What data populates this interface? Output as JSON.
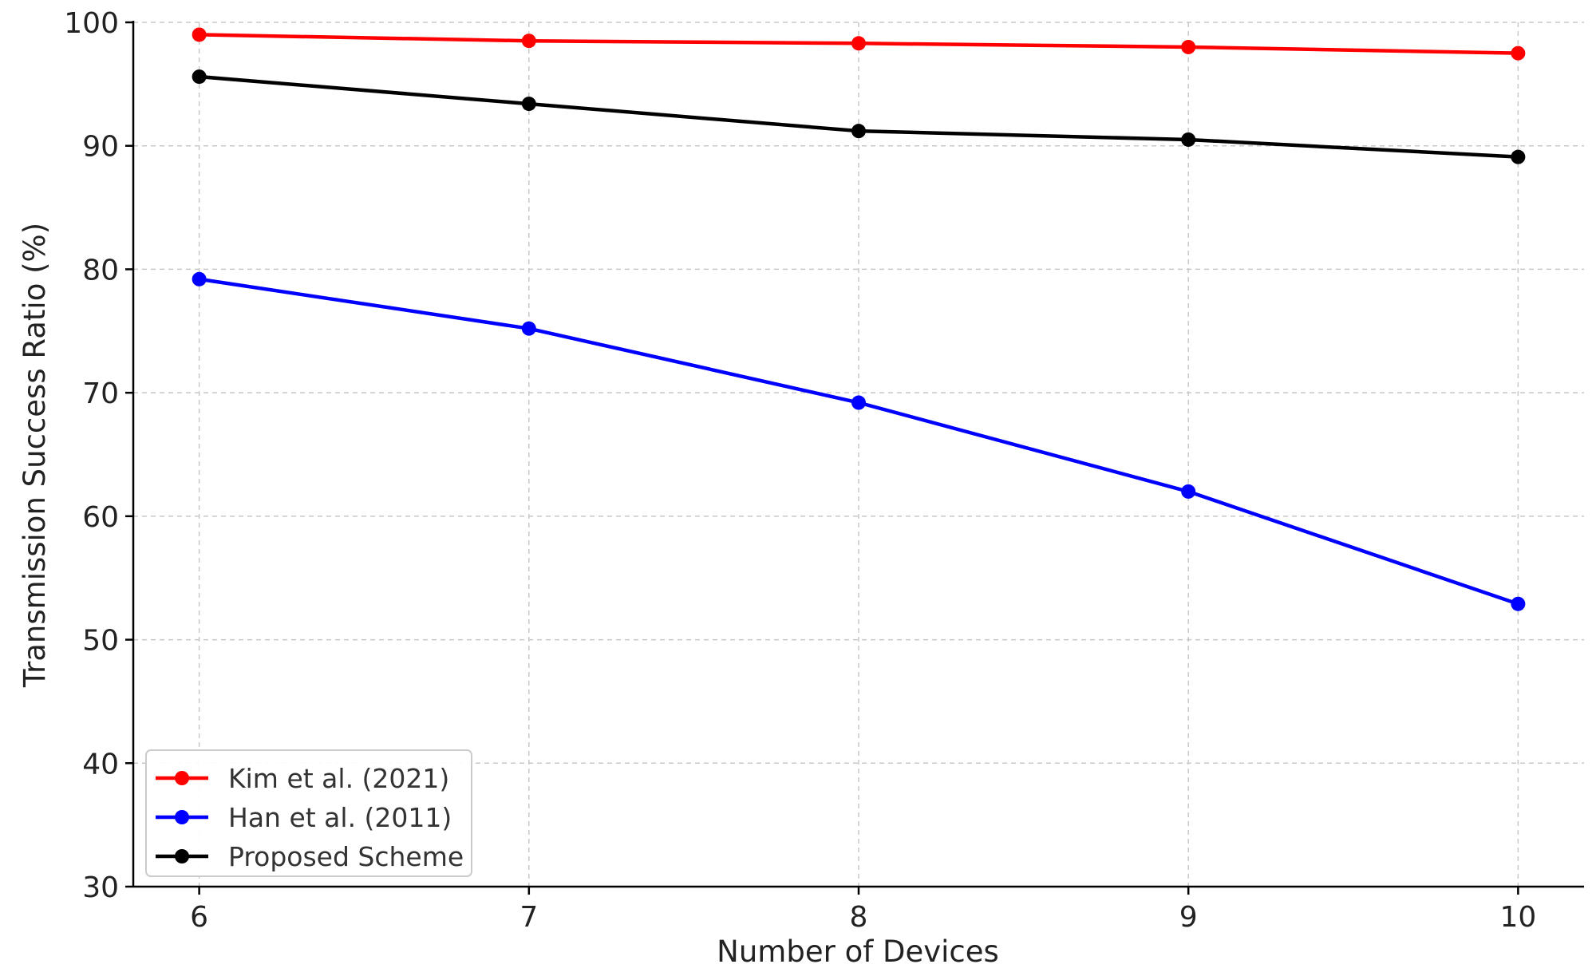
{
  "chart_data": {
    "type": "line",
    "title": "",
    "xlabel": "Number of Devices",
    "ylabel": "Transmission Success Ratio (%)",
    "x": [
      6,
      7,
      8,
      9,
      10
    ],
    "xlim": [
      5.8,
      10.2
    ],
    "ylim": [
      30,
      100
    ],
    "yticks": [
      30,
      40,
      50,
      60,
      70,
      80,
      90,
      100
    ],
    "grid": true,
    "legend_position": "lower-left",
    "series": [
      {
        "name": "Kim et al. (2021)",
        "color": "#ff0000",
        "values": [
          99.0,
          98.5,
          98.3,
          98.0,
          97.5
        ]
      },
      {
        "name": "Han et al. (2011)",
        "color": "#0000ff",
        "values": [
          79.2,
          75.2,
          69.2,
          62.0,
          52.9
        ]
      },
      {
        "name": "Proposed Scheme",
        "color": "#000000",
        "values": [
          95.6,
          93.4,
          91.2,
          90.5,
          89.1
        ]
      }
    ]
  }
}
